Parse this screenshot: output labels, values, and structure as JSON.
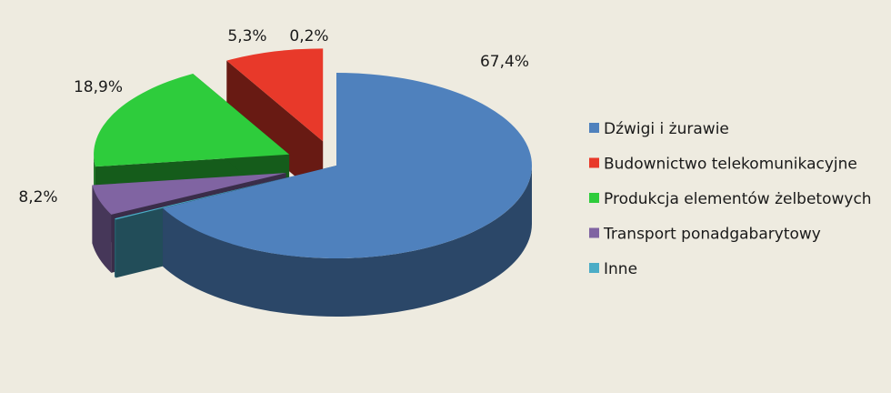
{
  "chart_data": {
    "type": "pie",
    "title": "",
    "legend_position": "right",
    "slices": [
      {
        "label": "Dźwigi i żurawie",
        "value": 67.4,
        "value_label": "67,4%",
        "color": "#4f81bd",
        "exploded": false
      },
      {
        "label": "Inne",
        "value": 0.2,
        "value_label": "0,2%",
        "color": "#4bacc6",
        "exploded": true
      },
      {
        "label": "Transport ponadgabarytowy",
        "value": 5.3,
        "value_label": "5,3%",
        "color": "#8064a2",
        "exploded": true
      },
      {
        "label": "Produkcja elementów żelbetowych",
        "value": 18.9,
        "value_label": "18,9%",
        "color": "#2ecc3c",
        "exploded": true
      },
      {
        "label": "Budownictwo telekomunikacyjne",
        "value": 8.2,
        "value_label": "8,2%",
        "color": "#e8392a",
        "exploded": true
      }
    ],
    "legend": [
      {
        "label": "Dźwigi i żurawie",
        "color": "#4f81bd"
      },
      {
        "label": "Budownictwo telekomunikacyjne",
        "color": "#e8392a"
      },
      {
        "label": "Produkcja elementów żelbetowych",
        "color": "#2ecc3c"
      },
      {
        "label": "Transport ponadgabarytowy",
        "color": "#8064a2"
      },
      {
        "label": "Inne",
        "color": "#4bacc6"
      }
    ]
  }
}
